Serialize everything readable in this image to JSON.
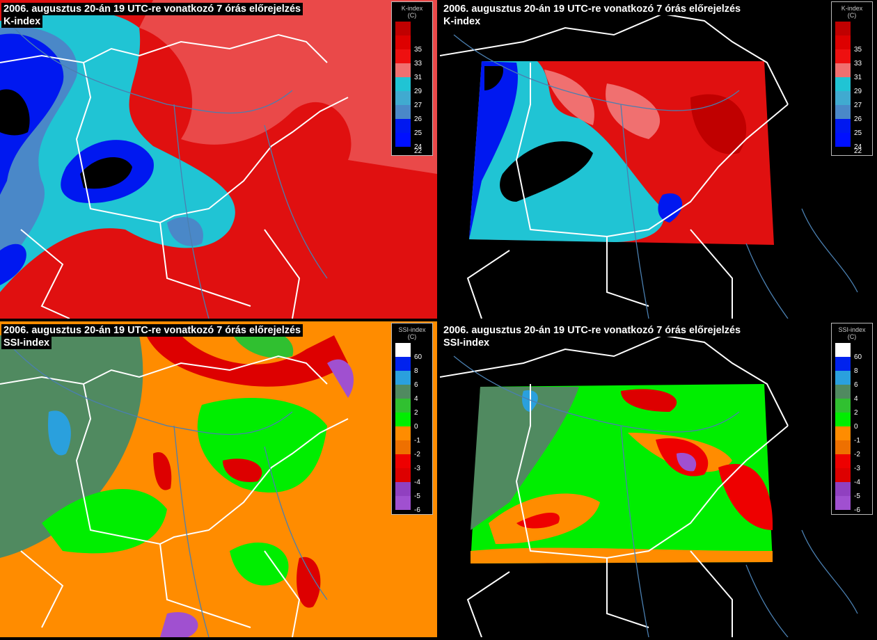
{
  "panels": [
    {
      "title": "2006. augusztus 20-án 19 UTC-re vonatkozó  7 órás előrejelzés",
      "subtitle": "K-index",
      "legend": {
        "title": "K-index",
        "unit": "(C)",
        "items": [
          {
            "label": null,
            "color": "#c00000"
          },
          {
            "label": 35,
            "color": "#dd0000"
          },
          {
            "label": 33,
            "color": "#ee1010"
          },
          {
            "label": 31,
            "color": "#f07070"
          },
          {
            "label": 29,
            "color": "#20c4d4"
          },
          {
            "label": 27,
            "color": "#40aad0"
          },
          {
            "label": 26,
            "color": "#4a88c8"
          },
          {
            "label": 25,
            "color": "#0018f0"
          },
          {
            "label": 24,
            "color": "#0010ff"
          },
          {
            "label": 22,
            "color": null
          }
        ]
      }
    },
    {
      "title": "2006. augusztus 20-án 19 UTC-re vonatkozó  7 órás előrejelzés",
      "subtitle": "K-index",
      "legend": {
        "title": "K-index",
        "unit": "(C)",
        "items": [
          {
            "label": null,
            "color": "#c00000"
          },
          {
            "label": 35,
            "color": "#dd0000"
          },
          {
            "label": 33,
            "color": "#ee1010"
          },
          {
            "label": 31,
            "color": "#f07070"
          },
          {
            "label": 29,
            "color": "#20c4d4"
          },
          {
            "label": 27,
            "color": "#40aad0"
          },
          {
            "label": 26,
            "color": "#4a88c8"
          },
          {
            "label": 25,
            "color": "#0018f0"
          },
          {
            "label": 24,
            "color": "#0010ff"
          },
          {
            "label": 22,
            "color": null
          }
        ]
      }
    },
    {
      "title": "2006. augusztus 20-án 19 UTC-re vonatkozó  7 órás előrejelzés",
      "subtitle": "SSI-index",
      "legend": {
        "title": "SSI-index",
        "unit": "(C)",
        "items": [
          {
            "label": 60,
            "color": "#ffffff"
          },
          {
            "label": 8,
            "color": "#0022ee"
          },
          {
            "label": 6,
            "color": "#2aa0dd"
          },
          {
            "label": 4,
            "color": "#508a60"
          },
          {
            "label": 2,
            "color": "#30c030"
          },
          {
            "label": 0,
            "color": "#00ee00"
          },
          {
            "label": -1,
            "color": "#ff8c00"
          },
          {
            "label": -2,
            "color": "#ee7000"
          },
          {
            "label": -3,
            "color": "#ee0000"
          },
          {
            "label": -4,
            "color": "#dd0000"
          },
          {
            "label": -5,
            "color": "#9040c0"
          },
          {
            "label": -6,
            "color": "#a050d0"
          }
        ]
      }
    },
    {
      "title": "2006. augusztus 20-án 19 UTC-re vonatkozó  7 órás előrejelzés",
      "subtitle": "SSI-index",
      "legend": {
        "title": "SSI-index",
        "unit": "(C)",
        "items": [
          {
            "label": 60,
            "color": "#ffffff"
          },
          {
            "label": 8,
            "color": "#0022ee"
          },
          {
            "label": 6,
            "color": "#2aa0dd"
          },
          {
            "label": 4,
            "color": "#508a60"
          },
          {
            "label": 2,
            "color": "#30c030"
          },
          {
            "label": 0,
            "color": "#00ee00"
          },
          {
            "label": -1,
            "color": "#ff8c00"
          },
          {
            "label": -2,
            "color": "#ee7000"
          },
          {
            "label": -3,
            "color": "#ee0000"
          },
          {
            "label": -4,
            "color": "#dd0000"
          },
          {
            "label": -5,
            "color": "#9040c0"
          },
          {
            "label": -6,
            "color": "#a050d0"
          }
        ]
      }
    }
  ]
}
